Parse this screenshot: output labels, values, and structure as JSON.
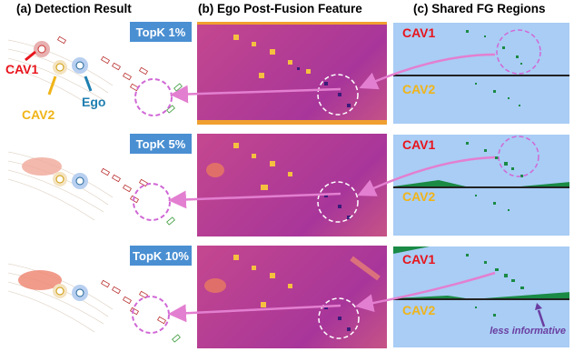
{
  "titles": {
    "a": "(a) Detection Result",
    "b": "(b) Ego Post-Fusion Feature",
    "c": "(c) Shared FG Regions"
  },
  "rows": [
    {
      "topk": "TopK 1%"
    },
    {
      "topk": "TopK 5%"
    },
    {
      "topk": "TopK 10%"
    }
  ],
  "labels": {
    "cav1": "CAV1",
    "cav2": "CAV2",
    "ego": "Ego",
    "less_informative": "less informative"
  },
  "colors": {
    "cav1": "#e8141c",
    "cav2": "#f0b418",
    "ego": "#1e7fb0",
    "arrow": "#e37fd0",
    "circle": "#d068d6",
    "topk_bg": "#4a8fd2",
    "fg_bg": "#a9cdf5",
    "fg_points": "#1a8a45",
    "less_informative": "#6a3da0"
  }
}
